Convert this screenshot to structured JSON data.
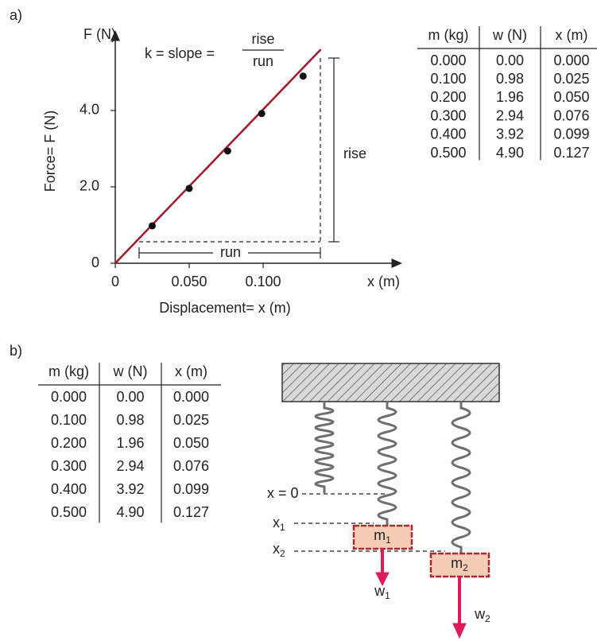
{
  "panel_labels": [
    "a)",
    "b)"
  ],
  "chart_data": {
    "type": "scatter",
    "x_end_label": "x (m)",
    "y_end_label": "F (N)",
    "xlabel": "Displacement= x (m)",
    "ylabel": "Force= F (N)",
    "annotation": "k = slope =",
    "fraction": {
      "numerator": "rise",
      "denominator": "run"
    },
    "rise_label": "rise",
    "run_label": "run",
    "x": [
      0.025,
      0.05,
      0.076,
      0.099,
      0.127
    ],
    "values": [
      0.98,
      1.96,
      2.94,
      3.92,
      4.9
    ],
    "color": "#111111",
    "fit": {
      "x": [
        0,
        0.139
      ],
      "y": [
        0,
        5.6
      ],
      "color": "#a0182a"
    },
    "xlim": [
      0,
      0.1935
    ],
    "ylim": [
      0,
      6.06
    ],
    "xticks": [
      0,
      {
        "value": 0.05,
        "label": "0.050"
      },
      {
        "value": 0.1,
        "label": "0.100"
      }
    ],
    "yticks": [
      0,
      {
        "value": 2,
        "label": "2.0"
      },
      {
        "value": 4,
        "label": "4.0"
      }
    ]
  },
  "table": {
    "header": [
      "m (kg)",
      "w (N)",
      "x (m)"
    ],
    "rows": [
      [
        "0.000",
        "0.00",
        "0.000"
      ],
      [
        "0.100",
        "0.98",
        "0.025"
      ],
      [
        "0.200",
        "1.96",
        "0.050"
      ],
      [
        "0.300",
        "2.94",
        "0.076"
      ],
      [
        "0.400",
        "3.92",
        "0.099"
      ],
      [
        "0.500",
        "4.90",
        "0.127"
      ]
    ]
  },
  "diagram": {
    "positions": [
      {
        "text": "x = 0"
      },
      {
        "text": "x",
        "sub": "1"
      },
      {
        "text": "x",
        "sub": "2"
      }
    ],
    "masses": [
      {
        "text": "m",
        "sub": "1"
      },
      {
        "text": "m",
        "sub": "2"
      }
    ],
    "weights": [
      {
        "text": "w",
        "sub": "1"
      },
      {
        "text": "w",
        "sub": "2"
      }
    ]
  }
}
